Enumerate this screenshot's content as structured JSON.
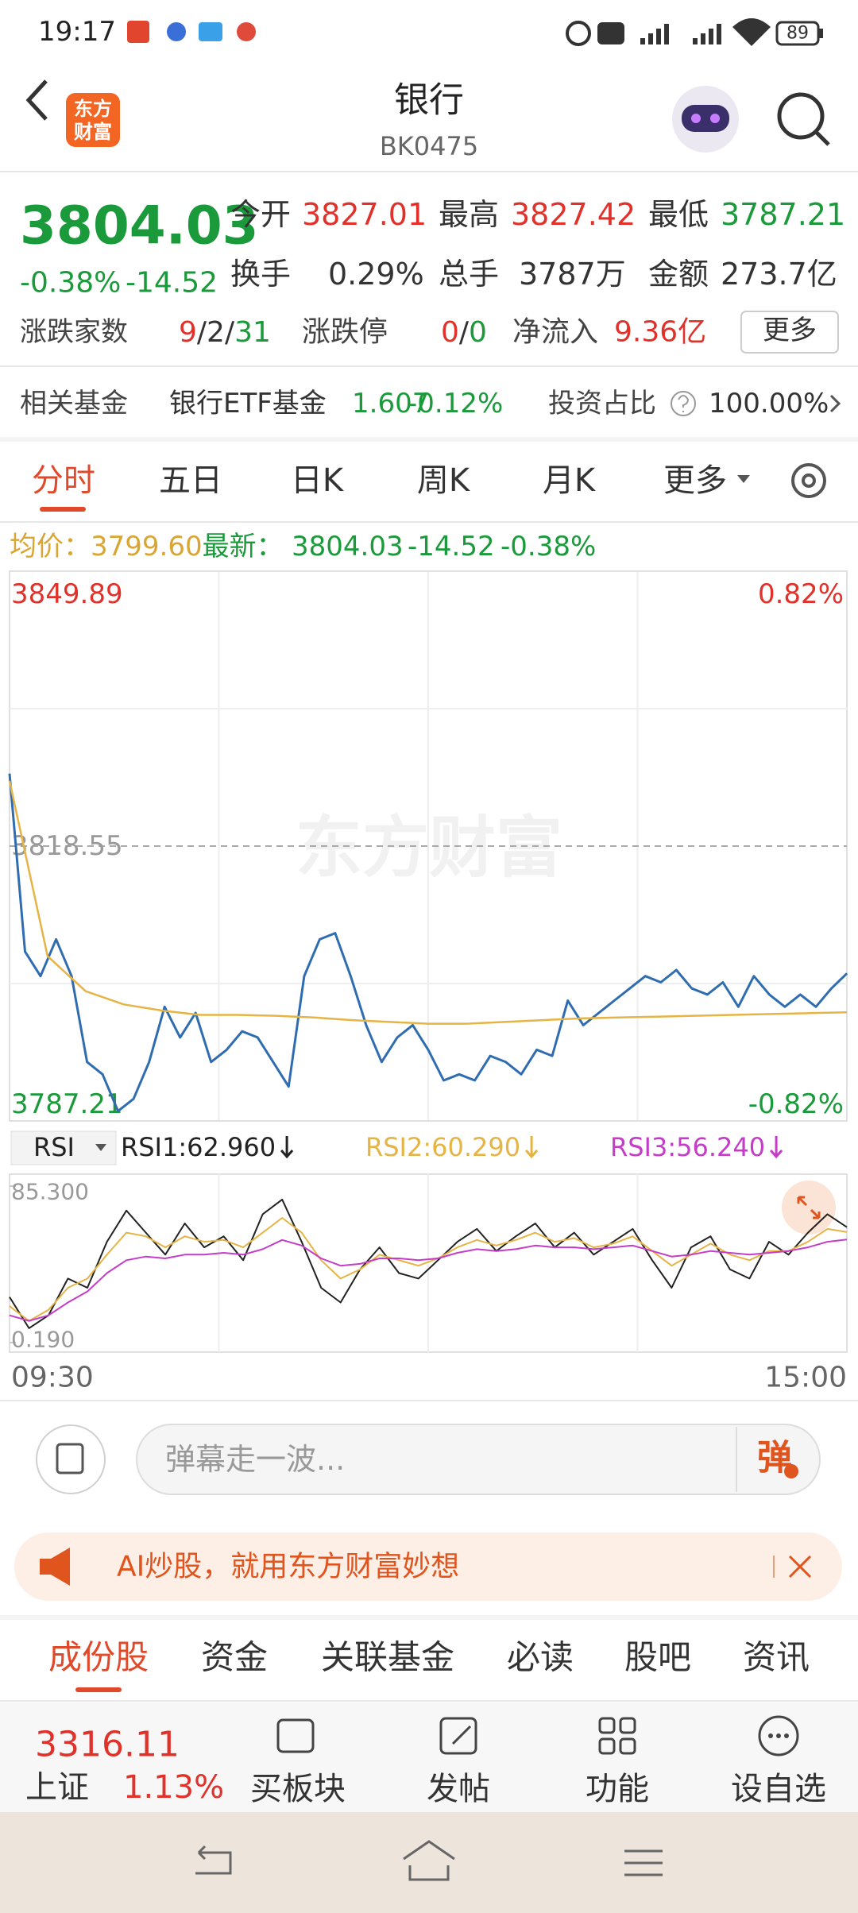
{
  "status_bar": {
    "time": "19:17",
    "battery": "89"
  },
  "header": {
    "logo": [
      "东方",
      "财富"
    ],
    "title": "银行",
    "code": "BK0475"
  },
  "quote": {
    "price": "3804.03",
    "change_pct": "-0.38%",
    "change": "-14.52",
    "fields": [
      {
        "label": "今开",
        "value": "3827.01"
      },
      {
        "label": "最高",
        "value": "3827.42"
      },
      {
        "label": "最低",
        "value": "3787.21"
      },
      {
        "label": "换手",
        "value": "0.29%"
      },
      {
        "label": "总手",
        "value": "3787万"
      },
      {
        "label": "金额",
        "value": "273.7亿"
      }
    ],
    "breadth": {
      "label": "涨跌家数",
      "up": "9",
      "flat": "2",
      "down": "31",
      "separator": "/"
    },
    "limit": {
      "label": "涨跌停",
      "up": "0",
      "down": "0",
      "separator": "/"
    },
    "inflow": {
      "label": "净流入",
      "value": "9.36亿"
    },
    "more": "更多"
  },
  "fund": {
    "label": "相关基金",
    "name": "银行ETF基金",
    "price": "1.607",
    "change": "-0.12%",
    "ratio_label": "投资占比",
    "ratio": "100.00%"
  },
  "tabs": [
    "分时",
    "五日",
    "日K",
    "周K",
    "月K",
    "更多"
  ],
  "info": {
    "avg_label": "均价：",
    "avg": "3799.60",
    "last_label": "最新：",
    "last": "3804.03",
    "change": "-14.52",
    "change_pct": "-0.38%"
  },
  "watermark": "东方财富",
  "chart_data": [
    {
      "type": "line",
      "ylim": [
        3787.21,
        3849.89
      ],
      "yticks": [
        3787.21,
        3818.55,
        3849.89
      ],
      "y2lim": [
        -0.82,
        0.82
      ],
      "y2ticks": [
        {
          "value": -0.82,
          "label": "-0.82%"
        },
        {
          "value": 0.82,
          "label": "0.82%"
        }
      ],
      "grid": true,
      "series": [
        {
          "color": "#2f6db0",
          "values": [
            3826.81,
            3806.52,
            3803.72,
            3807.92,
            3803.72,
            3793.93,
            3792.53,
            3788.33,
            3789.73,
            3793.93,
            3800.23,
            3796.73,
            3799.53,
            3793.93,
            3795.33,
            3797.43,
            3796.73,
            3793.93,
            3791.13,
            3803.72,
            3807.92,
            3808.62,
            3803.72,
            3798.13,
            3793.93,
            3796.73,
            3798.13,
            3795.33,
            3791.83,
            3792.53,
            3791.83,
            3794.63,
            3793.93,
            3792.53,
            3795.33,
            3794.63,
            3800.93,
            3798.13,
            3799.53,
            3800.93,
            3802.32,
            3803.72,
            3803.02,
            3804.42,
            3802.32,
            3801.62,
            3803.02,
            3800.23,
            3803.72,
            3801.62,
            3800.23,
            3801.62,
            3800.23,
            3802.32,
            3804.03
          ]
        },
        {
          "color": "#e6b445",
          "values": [
            3826,
            3806,
            3802,
            3800.5,
            3799.8,
            3799.3,
            3799.3,
            3799.2,
            3799,
            3798.7,
            3798.5,
            3798.3,
            3798.3,
            3798.5,
            3798.7,
            3798.9,
            3799,
            3799.1,
            3799.2,
            3799.3,
            3799.4,
            3799.5,
            3799.6
          ]
        }
      ]
    },
    {
      "type": "line",
      "ylim": [
        0.19,
        85.3
      ],
      "yticks": [
        {
          "value": 0.19,
          "label": "0.190"
        },
        {
          "value": 85.3,
          "label": "85.300"
        }
      ],
      "grid": true,
      "series": [
        {
          "name": "RSI1:62.960",
          "color": "#222222",
          "values": [
            25,
            8,
            15,
            35,
            30,
            55,
            72,
            60,
            48,
            65,
            52,
            58,
            45,
            70,
            78,
            55,
            30,
            22,
            40,
            52,
            38,
            35,
            45,
            55,
            62,
            50,
            58,
            65,
            52,
            60,
            48,
            55,
            62,
            45,
            30,
            52,
            58,
            40,
            35,
            55,
            48,
            60,
            70,
            62.96
          ]
        },
        {
          "name": "RSI2:60.290",
          "color": "#e6b445",
          "values": [
            20,
            12,
            18,
            30,
            35,
            48,
            60,
            58,
            52,
            58,
            55,
            56,
            52,
            60,
            68,
            60,
            45,
            35,
            40,
            48,
            45,
            42,
            46,
            52,
            56,
            53,
            56,
            60,
            55,
            57,
            52,
            54,
            58,
            50,
            42,
            48,
            54,
            48,
            45,
            50,
            50,
            55,
            62,
            60.29
          ]
        },
        {
          "name": "RSI3:56.240",
          "color": "#c43cc8",
          "values": [
            15,
            12,
            15,
            22,
            28,
            38,
            45,
            47,
            46,
            48,
            48,
            49,
            48,
            51,
            56,
            53,
            46,
            42,
            43,
            46,
            46,
            45,
            46,
            49,
            51,
            50,
            51,
            53,
            52,
            52,
            51,
            52,
            53,
            50,
            47,
            48,
            50,
            49,
            48,
            49,
            50,
            52,
            55,
            56.24
          ]
        }
      ]
    }
  ],
  "rsi_selector": "RSI",
  "time_axis": [
    "09:30",
    "15:00"
  ],
  "comment": {
    "placeholder": "弹幕走一波...",
    "button": "弹"
  },
  "banner": {
    "text": "AI炒股，就用东方财富妙想"
  },
  "sections": [
    "成份股",
    "资金",
    "关联基金",
    "必读",
    "股吧",
    "资讯"
  ],
  "toolbar": {
    "index_value": "3316.11",
    "index_name": "上证",
    "index_change": "1.13%",
    "buttons": [
      "买板块",
      "发帖",
      "功能",
      "设自选"
    ]
  }
}
